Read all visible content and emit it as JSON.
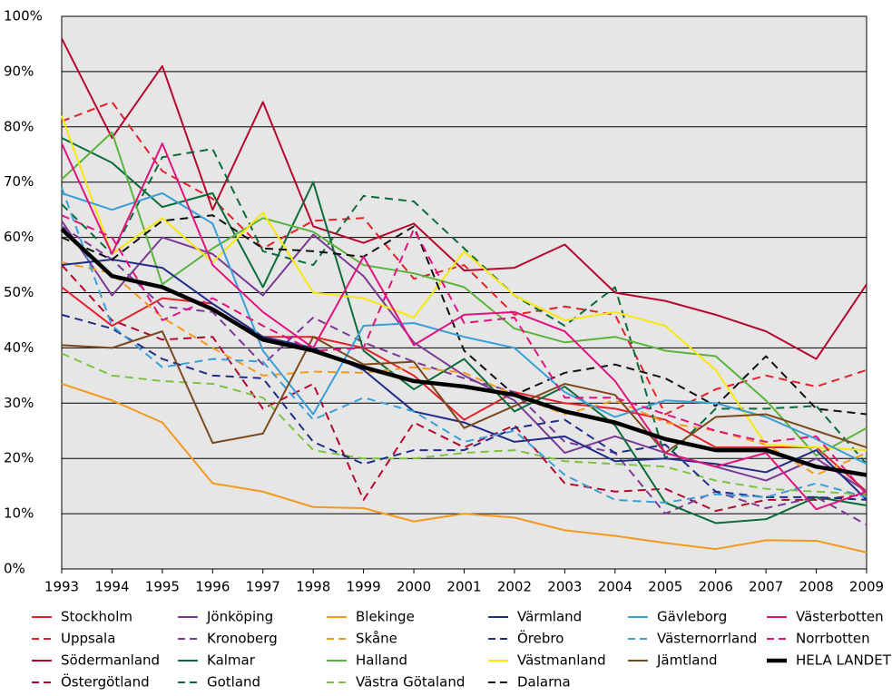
{
  "chart_data": {
    "type": "line",
    "x": [
      1993,
      1994,
      1995,
      1996,
      1997,
      1998,
      1999,
      2000,
      2001,
      2002,
      2003,
      2004,
      2005,
      2006,
      2007,
      2008,
      2009
    ],
    "xlim": [
      1993,
      2009
    ],
    "xticks": [
      1993,
      1994,
      1995,
      1996,
      1997,
      1998,
      1999,
      2000,
      2001,
      2002,
      2003,
      2004,
      2005,
      2006,
      2007,
      2008,
      2009
    ],
    "ylim": [
      0,
      100
    ],
    "yticks": [
      {
        "value": 0,
        "label": "0%"
      },
      {
        "value": 10,
        "label": "10%"
      },
      {
        "value": 20,
        "label": "20%"
      },
      {
        "value": 30,
        "label": "30%"
      },
      {
        "value": 40,
        "label": "40%"
      },
      {
        "value": 50,
        "label": "50%"
      },
      {
        "value": 60,
        "label": "60%"
      },
      {
        "value": 70,
        "label": "70%"
      },
      {
        "value": 80,
        "label": "80%"
      },
      {
        "value": 90,
        "label": "90%"
      },
      {
        "value": 100,
        "label": "100%"
      }
    ],
    "grid": true,
    "legend": "bottom",
    "series": [
      {
        "name": "Stockholm",
        "color": "#e3222b",
        "style": "solid",
        "values": [
          51,
          44,
          49,
          48,
          42,
          42,
          40,
          35,
          27,
          32,
          30,
          29,
          27,
          22,
          22,
          22,
          14
        ]
      },
      {
        "name": "Uppsala",
        "color": "#e3222b",
        "style": "dashed",
        "values": [
          81,
          84.5,
          72,
          67,
          58,
          63,
          63.5,
          52.5,
          55,
          46,
          47.5,
          46,
          28,
          32.5,
          35,
          33,
          36
        ]
      },
      {
        "name": "Södermanland",
        "color": "#b5082e",
        "style": "solid",
        "values": [
          96,
          78,
          91,
          65,
          84.5,
          62,
          59,
          62.5,
          54,
          54.5,
          58.7,
          50,
          48.5,
          46,
          43,
          38,
          51.5
        ]
      },
      {
        "name": "Östergötland",
        "color": "#b5082e",
        "style": "dashed",
        "values": [
          55,
          45,
          41.5,
          42,
          29,
          33.5,
          12.5,
          26.5,
          22,
          26,
          15.5,
          14,
          14.5,
          10.5,
          12.5,
          12.5,
          13.5
        ]
      },
      {
        "name": "Jönköping",
        "color": "#7b3a96",
        "style": "solid",
        "values": [
          63,
          49.5,
          60,
          57,
          49.5,
          60.5,
          53,
          41,
          35,
          30.5,
          21,
          24,
          21,
          18.5,
          16,
          20,
          14
        ]
      },
      {
        "name": "Kronoberg",
        "color": "#7b3a96",
        "style": "dashed",
        "values": [
          62,
          56,
          47.5,
          46.5,
          37,
          45.5,
          41,
          37.5,
          34.5,
          32,
          23,
          21,
          10,
          14,
          11,
          13,
          8
        ]
      },
      {
        "name": "Kalmar",
        "color": "#0b6b3a",
        "style": "solid",
        "values": [
          78,
          73.5,
          65.5,
          68,
          51,
          70,
          39.5,
          32.5,
          38,
          28.5,
          33,
          26,
          12,
          8.3,
          9,
          13,
          11.5
        ]
      },
      {
        "name": "Gotland",
        "color": "#0b6b3a",
        "style": "dashed",
        "values": [
          66,
          57,
          74.5,
          76,
          57.5,
          55,
          67.5,
          66.5,
          58,
          49.5,
          44,
          51,
          20,
          29,
          29,
          29.5,
          19
        ]
      },
      {
        "name": "Blekinge",
        "color": "#f39a1e",
        "style": "solid",
        "values": [
          33.5,
          30.5,
          26.5,
          15.5,
          14,
          11.2,
          11,
          8.6,
          10,
          9.3,
          7,
          6,
          4.7,
          3.6,
          5.2,
          5.1,
          3
        ]
      },
      {
        "name": "Skåne",
        "color": "#f39a1e",
        "style": "dashed",
        "values": [
          55.5,
          53.5,
          45.5,
          40,
          35,
          35.7,
          35.5,
          36.5,
          35.5,
          31.5,
          28,
          30.5,
          26.5,
          25,
          22.5,
          17,
          21
        ]
      },
      {
        "name": "Halland",
        "color": "#5ab43c",
        "style": "solid",
        "values": [
          70.5,
          79,
          51.5,
          58,
          63.5,
          61,
          55,
          53.5,
          51,
          43.5,
          41,
          42,
          39.5,
          38.5,
          30.5,
          20.5,
          25.5
        ]
      },
      {
        "name": "Västra Götaland",
        "color": "#7dc242",
        "style": "dashed",
        "values": [
          39,
          35,
          34,
          33.5,
          31,
          21.5,
          20,
          20,
          21,
          21.5,
          19.5,
          19,
          18.5,
          16,
          14.5,
          14,
          13.5
        ]
      },
      {
        "name": "Värmland",
        "color": "#1f2d86",
        "style": "solid",
        "values": [
          55,
          56,
          54.5,
          48,
          42,
          40,
          36,
          28.5,
          26.5,
          23,
          24,
          19.5,
          20,
          19,
          17.5,
          21.5,
          12.5
        ]
      },
      {
        "name": "Örebro",
        "color": "#1f2d86",
        "style": "dashed",
        "values": [
          46,
          43.5,
          38,
          35,
          34.5,
          23,
          19,
          21.5,
          21.5,
          25.5,
          27,
          21,
          22.5,
          14,
          13,
          13,
          12.5
        ]
      },
      {
        "name": "Västmanland",
        "color": "#f7e80a",
        "style": "solid",
        "values": [
          82,
          57,
          63.5,
          55.5,
          64.5,
          50,
          49,
          45.5,
          57.5,
          49.5,
          45,
          46.5,
          44,
          36,
          22.5,
          22,
          21.5
        ]
      },
      {
        "name": "Dalarna",
        "color": "#111111",
        "style": "dashed",
        "values": [
          60,
          56,
          63,
          64,
          58,
          57.5,
          56.5,
          62,
          39.5,
          31.5,
          35.5,
          37,
          34.5,
          29.5,
          38.5,
          29,
          28
        ]
      },
      {
        "name": "Gävleborg",
        "color": "#3a9fd6",
        "style": "solid",
        "values": [
          68,
          65,
          68,
          62.5,
          39.5,
          28,
          44,
          44.5,
          42,
          40,
          32,
          27.5,
          30.5,
          30,
          27.5,
          23.5,
          19
        ]
      },
      {
        "name": "Västernorrland",
        "color": "#3a9fd6",
        "style": "dashed",
        "values": [
          69,
          44,
          36.5,
          38,
          37.5,
          27,
          31,
          28.5,
          23,
          25,
          17,
          12.5,
          12,
          13.5,
          13,
          15.5,
          13
        ]
      },
      {
        "name": "Jämtland",
        "color": "#7a4a1c",
        "style": "solid",
        "values": [
          40.5,
          40,
          43,
          22.8,
          24.5,
          42,
          37,
          37.5,
          25.5,
          29.5,
          33.5,
          31.5,
          21,
          27.5,
          28,
          25,
          22
        ]
      },
      {
        "name": "Västerbotten",
        "color": "#e0137f",
        "style": "solid",
        "values": [
          77,
          57,
          77,
          55,
          46.5,
          40,
          56.5,
          40.5,
          46,
          46.5,
          43,
          34,
          21,
          18.5,
          21,
          10.8,
          14
        ]
      },
      {
        "name": "Norrbotten",
        "color": "#e0137f",
        "style": "dashed",
        "values": [
          64,
          60,
          45,
          49,
          44,
          39.5,
          40,
          61.5,
          44.5,
          45.5,
          31,
          31,
          28,
          25,
          23,
          24,
          13.5
        ]
      },
      {
        "name": "HELA LANDET",
        "color": "#000000",
        "style": "bold",
        "values": [
          61.5,
          53,
          51,
          47,
          41.5,
          39.5,
          36.5,
          34,
          33,
          31.5,
          28.5,
          26.5,
          23.5,
          21.5,
          21.5,
          18.5,
          17
        ]
      }
    ]
  }
}
